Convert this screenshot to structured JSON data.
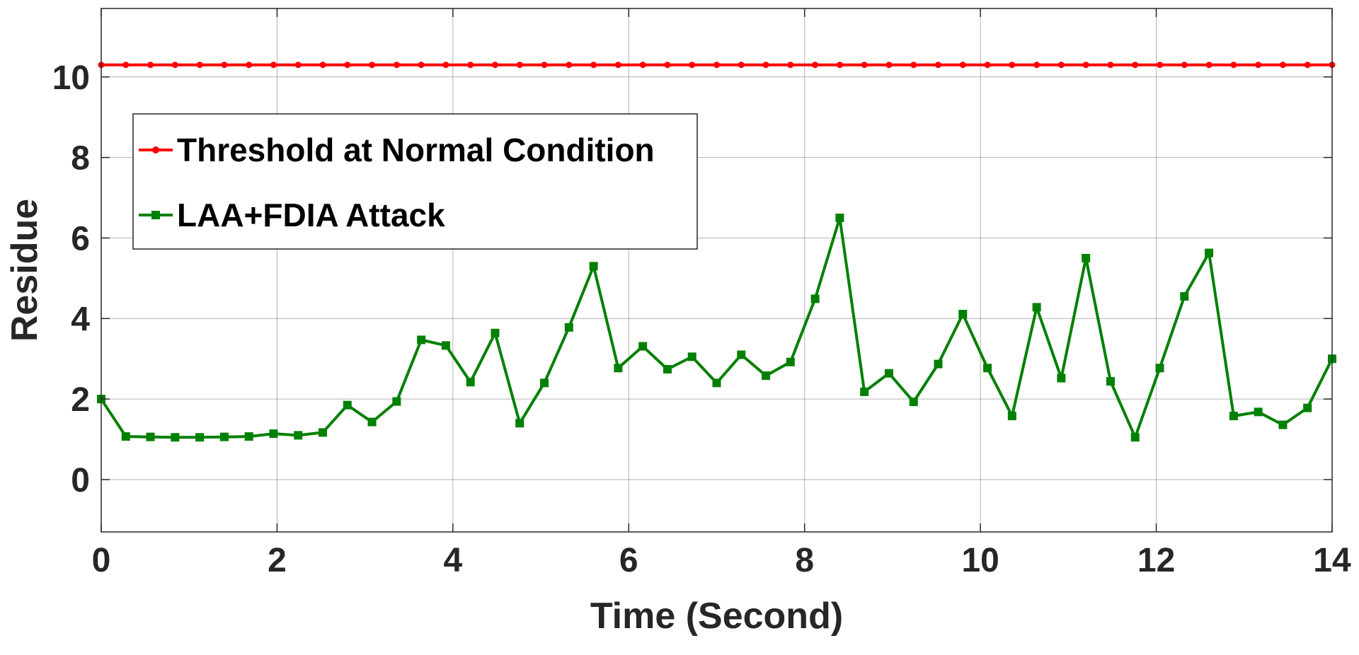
{
  "chart_data": {
    "type": "line",
    "xlabel": "Time (Second)",
    "ylabel": "Residue",
    "xlim": [
      0,
      14
    ],
    "ylim": [
      -1.3,
      11.7
    ],
    "x_ticks": [
      0,
      2,
      4,
      6,
      8,
      10,
      12,
      14
    ],
    "y_ticks": [
      0,
      2,
      4,
      6,
      8,
      10
    ],
    "grid": true,
    "legend_position": "upper-left",
    "series": [
      {
        "name": "Threshold at Normal Condition",
        "color": "#ff0000",
        "marker": "dot",
        "x": [
          0,
          0.28,
          0.56,
          0.84,
          1.12,
          1.4,
          1.68,
          1.96,
          2.24,
          2.52,
          2.8,
          3.08,
          3.36,
          3.64,
          3.92,
          4.2,
          4.48,
          4.76,
          5.04,
          5.32,
          5.6,
          5.88,
          6.16,
          6.44,
          6.72,
          7.0,
          7.28,
          7.56,
          7.84,
          8.12,
          8.4,
          8.68,
          8.96,
          9.24,
          9.52,
          9.8,
          10.08,
          10.36,
          10.64,
          10.92,
          11.2,
          11.48,
          11.76,
          12.04,
          12.32,
          12.6,
          12.88,
          13.16,
          13.44,
          13.72,
          14.0
        ],
        "y": [
          10.3,
          10.3,
          10.3,
          10.3,
          10.3,
          10.3,
          10.3,
          10.3,
          10.3,
          10.3,
          10.3,
          10.3,
          10.3,
          10.3,
          10.3,
          10.3,
          10.3,
          10.3,
          10.3,
          10.3,
          10.3,
          10.3,
          10.3,
          10.3,
          10.3,
          10.3,
          10.3,
          10.3,
          10.3,
          10.3,
          10.3,
          10.3,
          10.3,
          10.3,
          10.3,
          10.3,
          10.3,
          10.3,
          10.3,
          10.3,
          10.3,
          10.3,
          10.3,
          10.3,
          10.3,
          10.3,
          10.3,
          10.3,
          10.3,
          10.3,
          10.3
        ]
      },
      {
        "name": "LAA+FDIA Attack",
        "color": "#008000",
        "marker": "square",
        "x": [
          0,
          0.28,
          0.56,
          0.84,
          1.12,
          1.4,
          1.68,
          1.96,
          2.24,
          2.52,
          2.8,
          3.08,
          3.36,
          3.64,
          3.92,
          4.2,
          4.48,
          4.76,
          5.04,
          5.32,
          5.6,
          5.88,
          6.16,
          6.44,
          6.72,
          7.0,
          7.28,
          7.56,
          7.84,
          8.12,
          8.4,
          8.68,
          8.96,
          9.24,
          9.52,
          9.8,
          10.08,
          10.36,
          10.64,
          10.92,
          11.2,
          11.48,
          11.76,
          12.04,
          12.32,
          12.6,
          12.88,
          13.16,
          13.44,
          13.72,
          14.0
        ],
        "y": [
          2.0,
          1.07,
          1.06,
          1.05,
          1.05,
          1.06,
          1.07,
          1.14,
          1.1,
          1.17,
          1.85,
          1.43,
          1.94,
          3.47,
          3.33,
          2.42,
          3.64,
          1.4,
          2.4,
          3.78,
          5.3,
          2.77,
          3.31,
          2.74,
          3.05,
          2.4,
          3.1,
          2.58,
          2.92,
          4.49,
          6.5,
          2.18,
          2.64,
          1.93,
          2.87,
          4.11,
          2.77,
          1.58,
          4.28,
          2.52,
          5.5,
          2.44,
          1.05,
          2.77,
          4.55,
          5.63,
          1.58,
          1.68,
          1.36,
          1.78,
          3.0
        ]
      }
    ]
  }
}
